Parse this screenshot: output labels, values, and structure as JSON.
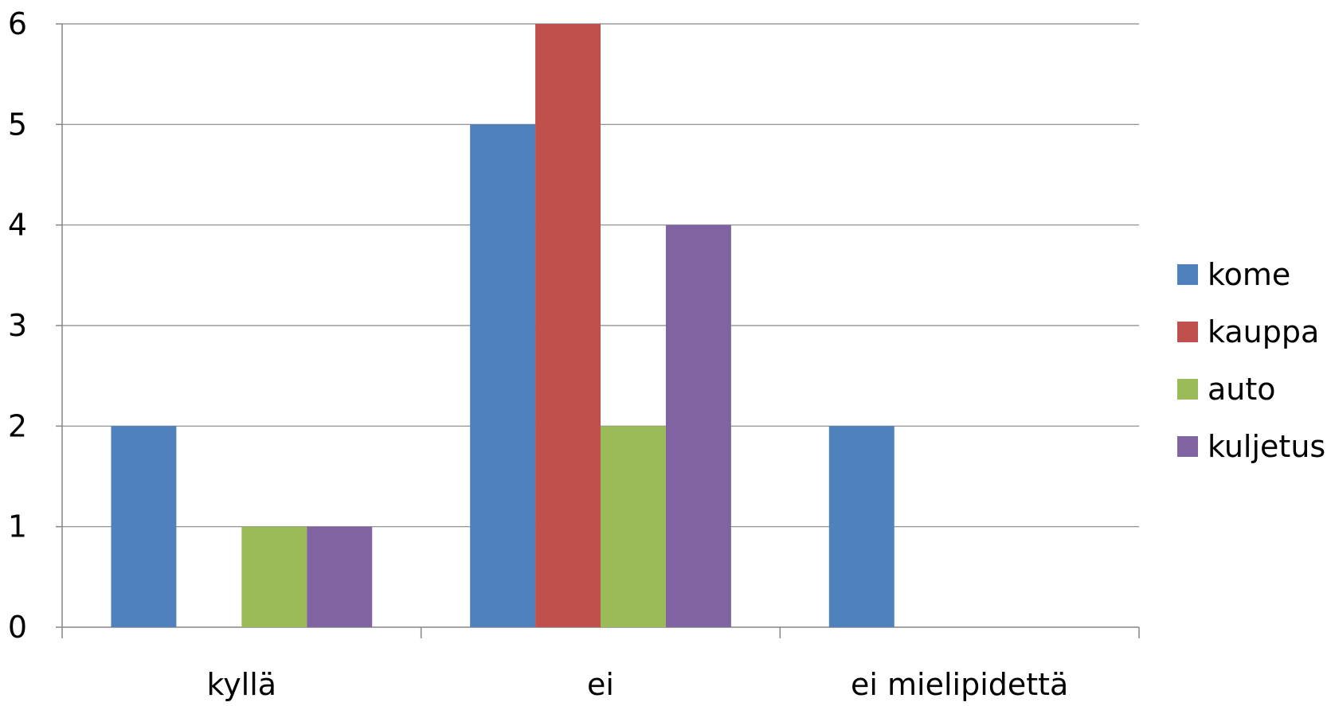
{
  "chart_data": {
    "type": "bar",
    "categories": [
      "kyllä",
      "ei",
      "ei mielipidettä"
    ],
    "series": [
      {
        "name": "kome",
        "color": "#4F81BD",
        "values": [
          2,
          5,
          2
        ]
      },
      {
        "name": "kauppa",
        "color": "#C0504D",
        "values": [
          0,
          6,
          0
        ]
      },
      {
        "name": "auto",
        "color": "#9BBB59",
        "values": [
          1,
          2,
          0
        ]
      },
      {
        "name": "kuljetus",
        "color": "#8064A2",
        "values": [
          1,
          4,
          0
        ]
      }
    ],
    "y_ticks": [
      "0",
      "1",
      "2",
      "3",
      "4",
      "5",
      "6"
    ],
    "ylim": [
      0,
      6
    ],
    "grid": true,
    "legend": "right"
  }
}
